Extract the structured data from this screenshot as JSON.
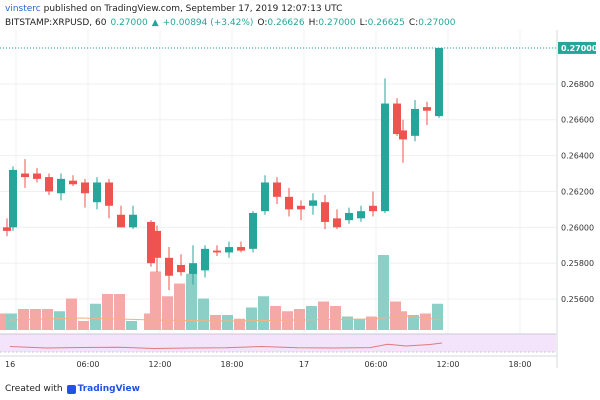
{
  "header": {
    "author": "vinsterc",
    "published_text": "published on TradingView.com, September 17, 2019 12:07:13 UTC",
    "symbol": "BITSTAMP:XRPUSD, 60",
    "last_price": "0.27000",
    "change_text": "+0.00894 (+3.42%)",
    "ohlc": [
      {
        "label": "O:",
        "value": "0.26626"
      },
      {
        "label": "H:",
        "value": "0.27000"
      },
      {
        "label": "L:",
        "value": "0.26625"
      },
      {
        "label": "C:",
        "value": "0.27000"
      }
    ]
  },
  "footer": {
    "created_with": "Created with",
    "brand": "TradingView"
  },
  "colors": {
    "up": "#26a69a",
    "down": "#ef5350",
    "vol_up": "#8ccfc7",
    "vol_down": "#f5a9a7",
    "ma": "#f4b183",
    "rsi_band": "#f3e3fb",
    "rsi_line": "#e07a7a",
    "last_line": "#26a69a"
  },
  "chart_data": {
    "type": "candlestick",
    "price_axis": {
      "ticks": [
        "0.27000",
        "0.26800",
        "0.26600",
        "0.26400",
        "0.26200",
        "0.26000",
        "0.25800",
        "0.25600"
      ],
      "min": 0.255,
      "max": 0.271,
      "last": "0.27000"
    },
    "time_axis": {
      "labels": [
        "16",
        "06:00",
        "12:00",
        "18:00",
        "17",
        "06:00",
        "12:00",
        "18:00"
      ],
      "label_bar_index": [
        0,
        12,
        24,
        36,
        48,
        60,
        72,
        84
      ]
    },
    "candles": [
      {
        "i": 0,
        "o": 0.26,
        "h": 0.2605,
        "l": 0.2595,
        "c": 0.2598,
        "v": 0.22
      },
      {
        "i": 1,
        "o": 0.26,
        "h": 0.2634,
        "l": 0.2598,
        "c": 0.2632,
        "v": 0.22
      },
      {
        "i": 3,
        "o": 0.263,
        "h": 0.2638,
        "l": 0.2622,
        "c": 0.2628,
        "v": 0.28
      },
      {
        "i": 5,
        "o": 0.263,
        "h": 0.2633,
        "l": 0.2625,
        "c": 0.2627,
        "v": 0.28
      },
      {
        "i": 7,
        "o": 0.2628,
        "h": 0.263,
        "l": 0.2618,
        "c": 0.262,
        "v": 0.28
      },
      {
        "i": 9,
        "o": 0.2619,
        "h": 0.263,
        "l": 0.2615,
        "c": 0.2627,
        "v": 0.25
      },
      {
        "i": 11,
        "o": 0.2626,
        "h": 0.2629,
        "l": 0.2623,
        "c": 0.2624,
        "v": 0.42
      },
      {
        "i": 13,
        "o": 0.2625,
        "h": 0.2627,
        "l": 0.2611,
        "c": 0.2619,
        "v": 0.12
      },
      {
        "i": 15,
        "o": 0.2614,
        "h": 0.2628,
        "l": 0.261,
        "c": 0.2625,
        "v": 0.35
      },
      {
        "i": 17,
        "o": 0.2625,
        "h": 0.2627,
        "l": 0.2605,
        "c": 0.2612,
        "v": 0.48
      },
      {
        "i": 19,
        "o": 0.2607,
        "h": 0.2612,
        "l": 0.26,
        "c": 0.26,
        "v": 0.48
      },
      {
        "i": 21,
        "o": 0.26,
        "h": 0.2612,
        "l": 0.2599,
        "c": 0.2607,
        "v": 0.12
      },
      {
        "i": 24,
        "o": 0.2603,
        "h": 0.2604,
        "l": 0.2578,
        "c": 0.258,
        "v": 0.22
      },
      {
        "i": 25,
        "o": 0.2598,
        "h": 0.2601,
        "l": 0.2575,
        "c": 0.2583,
        "v": 0.78
      },
      {
        "i": 27,
        "o": 0.2583,
        "h": 0.2589,
        "l": 0.2565,
        "c": 0.2573,
        "v": 0.45
      },
      {
        "i": 29,
        "o": 0.2579,
        "h": 0.2585,
        "l": 0.2573,
        "c": 0.2575,
        "v": 0.62
      },
      {
        "i": 31,
        "o": 0.2574,
        "h": 0.259,
        "l": 0.2568,
        "c": 0.258,
        "v": 0.75
      },
      {
        "i": 33,
        "o": 0.2576,
        "h": 0.259,
        "l": 0.2572,
        "c": 0.2588,
        "v": 0.42
      },
      {
        "i": 35,
        "o": 0.2587,
        "h": 0.259,
        "l": 0.2584,
        "c": 0.2586,
        "v": 0.2
      },
      {
        "i": 37,
        "o": 0.2586,
        "h": 0.2592,
        "l": 0.2583,
        "c": 0.2589,
        "v": 0.2
      },
      {
        "i": 39,
        "o": 0.2589,
        "h": 0.2592,
        "l": 0.2586,
        "c": 0.2587,
        "v": 0.15
      },
      {
        "i": 41,
        "o": 0.2588,
        "h": 0.2609,
        "l": 0.2586,
        "c": 0.2608,
        "v": 0.3
      },
      {
        "i": 43,
        "o": 0.2609,
        "h": 0.2629,
        "l": 0.2607,
        "c": 0.2625,
        "v": 0.45
      },
      {
        "i": 45,
        "o": 0.2625,
        "h": 0.2628,
        "l": 0.2613,
        "c": 0.2617,
        "v": 0.32
      },
      {
        "i": 47,
        "o": 0.2617,
        "h": 0.2622,
        "l": 0.2606,
        "c": 0.261,
        "v": 0.25
      },
      {
        "i": 49,
        "o": 0.2612,
        "h": 0.2615,
        "l": 0.2604,
        "c": 0.261,
        "v": 0.28
      },
      {
        "i": 51,
        "o": 0.2612,
        "h": 0.2619,
        "l": 0.2607,
        "c": 0.2615,
        "v": 0.32
      },
      {
        "i": 53,
        "o": 0.2614,
        "h": 0.2618,
        "l": 0.2599,
        "c": 0.2603,
        "v": 0.38
      },
      {
        "i": 55,
        "o": 0.2605,
        "h": 0.261,
        "l": 0.2599,
        "c": 0.26,
        "v": 0.32
      },
      {
        "i": 57,
        "o": 0.2604,
        "h": 0.2611,
        "l": 0.2602,
        "c": 0.2608,
        "v": 0.18
      },
      {
        "i": 59,
        "o": 0.2605,
        "h": 0.2612,
        "l": 0.2603,
        "c": 0.2609,
        "v": 0.15
      },
      {
        "i": 61,
        "o": 0.2612,
        "h": 0.262,
        "l": 0.2606,
        "c": 0.2609,
        "v": 0.18
      },
      {
        "i": 63,
        "o": 0.2609,
        "h": 0.2683,
        "l": 0.2608,
        "c": 0.2669,
        "v": 1.0
      },
      {
        "i": 65,
        "o": 0.2669,
        "h": 0.2672,
        "l": 0.2651,
        "c": 0.2652,
        "v": 0.38
      },
      {
        "i": 66,
        "o": 0.2654,
        "h": 0.266,
        "l": 0.2636,
        "c": 0.2649,
        "v": 0.25
      },
      {
        "i": 68,
        "o": 0.2651,
        "h": 0.2671,
        "l": 0.2648,
        "c": 0.2666,
        "v": 0.2
      },
      {
        "i": 70,
        "o": 0.2667,
        "h": 0.267,
        "l": 0.2657,
        "c": 0.2665,
        "v": 0.22
      },
      {
        "i": 72,
        "o": 0.2662,
        "h": 0.27,
        "l": 0.2661,
        "c": 0.27,
        "v": 0.35
      }
    ],
    "moving_average": [
      [
        0,
        0.2559
      ],
      [
        12,
        0.256
      ],
      [
        24,
        0.2559
      ],
      [
        36,
        0.25585
      ],
      [
        48,
        0.2559
      ],
      [
        60,
        0.25595
      ],
      [
        66,
        0.2561
      ],
      [
        72,
        0.2559
      ]
    ],
    "rsi": [
      [
        0,
        55
      ],
      [
        6,
        40
      ],
      [
        12,
        45
      ],
      [
        18,
        48
      ],
      [
        24,
        35
      ],
      [
        30,
        40
      ],
      [
        36,
        42
      ],
      [
        42,
        55
      ],
      [
        48,
        42
      ],
      [
        54,
        40
      ],
      [
        60,
        44
      ],
      [
        63,
        78
      ],
      [
        66,
        60
      ],
      [
        70,
        75
      ],
      [
        72,
        90
      ]
    ]
  }
}
